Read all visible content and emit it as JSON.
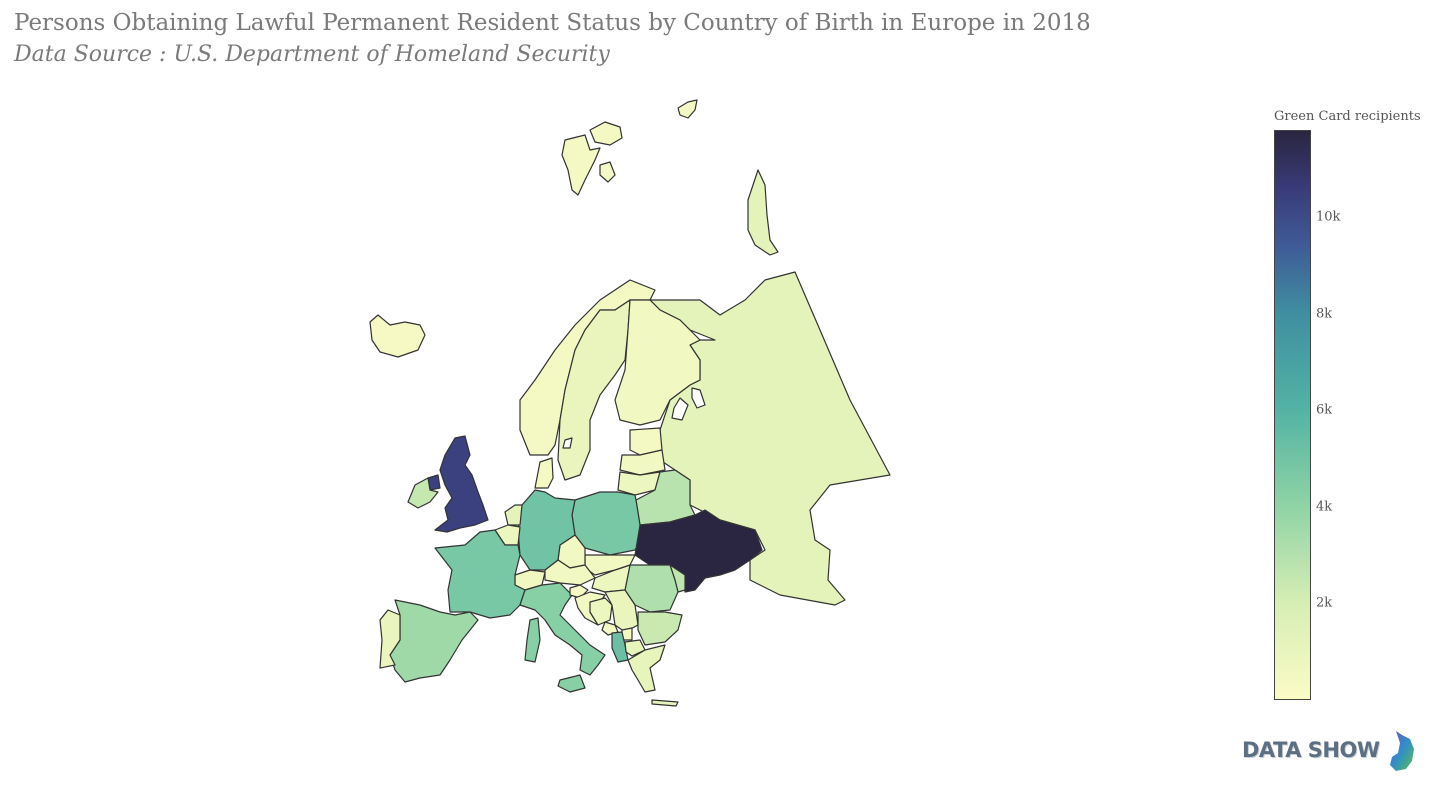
{
  "title": "Persons Obtaining Lawful Permanent Resident Status by Country of Birth in Europe in 2018",
  "subtitle": "Data Source : U.S. Department of Homeland Security",
  "colorbar": {
    "title": "Green Card recipients",
    "ticks": [
      {
        "label": "10k",
        "value": 10000
      },
      {
        "label": "8k",
        "value": 8000
      },
      {
        "label": "6k",
        "value": 6000
      },
      {
        "label": "4k",
        "value": 4000
      },
      {
        "label": "2k",
        "value": 2000
      }
    ],
    "min": 0,
    "max": 11800,
    "colors": [
      "#fbfbc6",
      "#d6eeb4",
      "#8fd3a5",
      "#52b3a4",
      "#3f8ea0",
      "#3f5a97",
      "#393b78",
      "#2a2540"
    ]
  },
  "logo": {
    "text": "DATA SHOW"
  },
  "map_data": {
    "type": "choropleth",
    "region": "Europe",
    "value_name": "Green Card recipients",
    "countries": [
      {
        "id": "ukraine",
        "value": 11800
      },
      {
        "id": "united-kingdom",
        "value": 9800
      },
      {
        "id": "germany",
        "value": 4200
      },
      {
        "id": "france",
        "value": 4000
      },
      {
        "id": "poland",
        "value": 4000
      },
      {
        "id": "albania",
        "value": 4400
      },
      {
        "id": "italy",
        "value": 3600
      },
      {
        "id": "spain",
        "value": 3000
      },
      {
        "id": "romania",
        "value": 2600
      },
      {
        "id": "belarus",
        "value": 2400
      },
      {
        "id": "ireland",
        "value": 2100
      },
      {
        "id": "moldova",
        "value": 2200
      },
      {
        "id": "bulgaria",
        "value": 2000
      },
      {
        "id": "russia",
        "value": 1100
      },
      {
        "id": "netherlands",
        "value": 1000
      },
      {
        "id": "sweden",
        "value": 800
      },
      {
        "id": "portugal",
        "value": 800
      },
      {
        "id": "greece",
        "value": 900
      },
      {
        "id": "hungary",
        "value": 700
      },
      {
        "id": "serbia",
        "value": 800
      },
      {
        "id": "bosnia",
        "value": 700
      },
      {
        "id": "croatia",
        "value": 400
      },
      {
        "id": "lithuania",
        "value": 700
      },
      {
        "id": "latvia",
        "value": 400
      },
      {
        "id": "estonia",
        "value": 300
      },
      {
        "id": "finland",
        "value": 400
      },
      {
        "id": "norway",
        "value": 300
      },
      {
        "id": "svalbard",
        "value": 300
      },
      {
        "id": "novaya-zemlya",
        "value": 1100
      },
      {
        "id": "iceland",
        "value": 200
      },
      {
        "id": "denmark",
        "value": 300
      },
      {
        "id": "belgium",
        "value": 700
      },
      {
        "id": "switzerland",
        "value": 500
      },
      {
        "id": "austria",
        "value": 400
      },
      {
        "id": "czechia",
        "value": 400
      },
      {
        "id": "slovakia",
        "value": 400
      },
      {
        "id": "slovenia",
        "value": 200
      },
      {
        "id": "north-macedonia",
        "value": 900
      },
      {
        "id": "montenegro",
        "value": 300
      },
      {
        "id": "kosovo",
        "value": 300
      },
      {
        "id": "sardinia-corsica",
        "value": 3600
      },
      {
        "id": "sicily",
        "value": 3600
      },
      {
        "id": "crete",
        "value": 900
      }
    ]
  }
}
